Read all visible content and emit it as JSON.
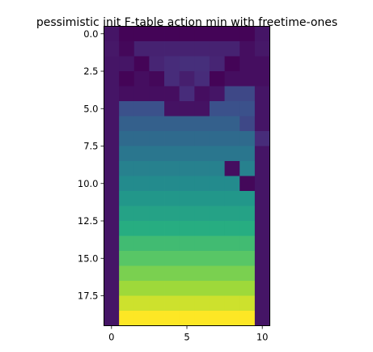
{
  "chart_data": {
    "type": "heatmap",
    "title": "pessimistic init F-table action min with freetime-ones",
    "xlabel": "",
    "ylabel": "",
    "colormap": "viridis",
    "cmap_min": 0,
    "cmap_max": 1,
    "x_ticks": [
      0,
      5,
      10
    ],
    "x_tick_labels": [
      "0",
      "5",
      "10"
    ],
    "y_ticks": [
      0.0,
      2.5,
      5.0,
      7.5,
      10.0,
      12.5,
      15.0,
      17.5
    ],
    "y_tick_labels": [
      "0.0",
      "2.5",
      "5.0",
      "7.5",
      "10.0",
      "12.5",
      "15.0",
      "17.5"
    ],
    "xlim": [
      -0.5,
      10.5
    ],
    "ylim": [
      19.5,
      -0.5
    ],
    "x_categories": [
      0,
      1,
      2,
      3,
      4,
      5,
      6,
      7,
      8,
      9,
      10
    ],
    "y_categories": [
      0,
      1,
      2,
      3,
      4,
      5,
      6,
      7,
      8,
      9,
      10,
      11,
      12,
      13,
      14,
      15,
      16,
      17,
      18,
      19
    ],
    "values": [
      [
        0.06,
        0.01,
        0.01,
        0.01,
        0.01,
        0.01,
        0.01,
        0.01,
        0.01,
        0.01,
        0.06
      ],
      [
        0.07,
        0.02,
        0.1,
        0.1,
        0.1,
        0.1,
        0.1,
        0.1,
        0.1,
        0.04,
        0.07
      ],
      [
        0.06,
        0.06,
        0.01,
        0.11,
        0.13,
        0.14,
        0.14,
        0.11,
        0.01,
        0.04,
        0.04
      ],
      [
        0.06,
        0.01,
        0.04,
        0.02,
        0.13,
        0.09,
        0.13,
        0.01,
        0.04,
        0.04,
        0.04
      ],
      [
        0.06,
        0.04,
        0.04,
        0.04,
        0.04,
        0.13,
        0.04,
        0.06,
        0.22,
        0.22,
        0.06
      ],
      [
        0.06,
        0.25,
        0.25,
        0.25,
        0.05,
        0.05,
        0.05,
        0.25,
        0.25,
        0.25,
        0.06
      ],
      [
        0.06,
        0.31,
        0.31,
        0.31,
        0.31,
        0.31,
        0.31,
        0.31,
        0.31,
        0.22,
        0.06
      ],
      [
        0.06,
        0.35,
        0.35,
        0.35,
        0.35,
        0.35,
        0.35,
        0.35,
        0.35,
        0.35,
        0.13
      ],
      [
        0.06,
        0.4,
        0.4,
        0.4,
        0.4,
        0.4,
        0.4,
        0.4,
        0.4,
        0.4,
        0.06
      ],
      [
        0.06,
        0.44,
        0.44,
        0.44,
        0.44,
        0.44,
        0.44,
        0.44,
        0.04,
        0.44,
        0.06
      ],
      [
        0.06,
        0.48,
        0.48,
        0.48,
        0.48,
        0.48,
        0.48,
        0.48,
        0.48,
        0.02,
        0.06
      ],
      [
        0.06,
        0.53,
        0.53,
        0.53,
        0.53,
        0.53,
        0.53,
        0.53,
        0.53,
        0.53,
        0.06
      ],
      [
        0.06,
        0.58,
        0.58,
        0.58,
        0.58,
        0.58,
        0.58,
        0.58,
        0.58,
        0.58,
        0.06
      ],
      [
        0.06,
        0.63,
        0.63,
        0.63,
        0.63,
        0.63,
        0.63,
        0.63,
        0.63,
        0.63,
        0.06
      ],
      [
        0.06,
        0.69,
        0.69,
        0.69,
        0.69,
        0.69,
        0.69,
        0.69,
        0.69,
        0.69,
        0.06
      ],
      [
        0.06,
        0.74,
        0.74,
        0.74,
        0.74,
        0.74,
        0.74,
        0.74,
        0.74,
        0.74,
        0.06
      ],
      [
        0.06,
        0.8,
        0.8,
        0.8,
        0.8,
        0.8,
        0.8,
        0.8,
        0.8,
        0.8,
        0.06
      ],
      [
        0.06,
        0.86,
        0.86,
        0.86,
        0.86,
        0.86,
        0.86,
        0.86,
        0.86,
        0.86,
        0.06
      ],
      [
        0.06,
        0.93,
        0.93,
        0.93,
        0.93,
        0.93,
        0.93,
        0.93,
        0.93,
        0.93,
        0.06
      ],
      [
        0.06,
        1.0,
        1.0,
        1.0,
        1.0,
        1.0,
        1.0,
        1.0,
        1.0,
        1.0,
        0.06
      ]
    ],
    "grid": false,
    "legend": "none"
  }
}
